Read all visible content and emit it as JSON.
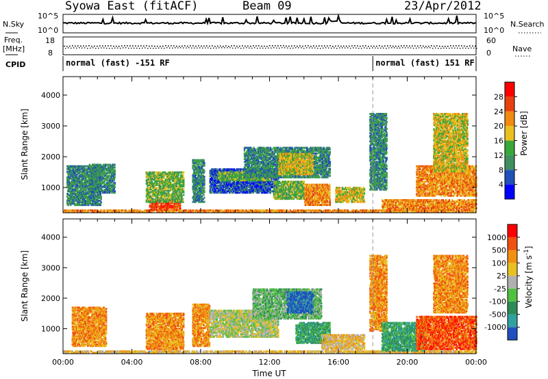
{
  "header": {
    "station": "Syowa East (fitACF)",
    "beam": "Beam 09",
    "date": "23/Apr/2012"
  },
  "noise_panel": {
    "left_label": "N.Sky",
    "right_label": "N.Search",
    "left_ticks": [
      "10^5",
      "10^0"
    ],
    "right_ticks": [
      "10^5",
      "10^0"
    ]
  },
  "freq_panel": {
    "left_label": "Freq.",
    "left_unit": "[MHz]",
    "right_label": "Nave",
    "left_ticks": [
      "18",
      "8"
    ],
    "right_ticks": [
      "60",
      "0"
    ]
  },
  "cpid_panel": {
    "label": "CPID",
    "modes": [
      {
        "name": "normal (fast) -151 RF",
        "start_hour": 0
      },
      {
        "name": "normal (fast) 151 RF",
        "start_hour": 18
      }
    ]
  },
  "chart_data": [
    {
      "type": "heatmap",
      "name": "power",
      "ylabel": "Slant Range [km]",
      "y_ticks": [
        "1000",
        "2000",
        "3000",
        "4000"
      ],
      "ylim": [
        180,
        4600
      ],
      "xlim": [
        0,
        24
      ],
      "colorbar": {
        "title": "Power [dB]",
        "labels": [
          "4",
          "8",
          "12",
          "16",
          "20",
          "24",
          "28"
        ],
        "colors": [
          "#0000ff",
          "#2050b8",
          "#3f8f5f",
          "#38a838",
          "#e8c020",
          "#f08a10",
          "#e84010",
          "#ff0000"
        ]
      },
      "echo_regions": [
        {
          "t0": 0.0,
          "t1": 24.0,
          "r0": 180,
          "r1": 260,
          "level": 5
        },
        {
          "t0": 0.2,
          "t1": 2.2,
          "r0": 400,
          "r1": 1700,
          "level": 2
        },
        {
          "t0": 1.5,
          "t1": 3.0,
          "r0": 800,
          "r1": 1750,
          "level": 2
        },
        {
          "t0": 5.0,
          "t1": 6.8,
          "r0": 250,
          "r1": 600,
          "level": 6
        },
        {
          "t0": 4.8,
          "t1": 7.0,
          "r0": 500,
          "r1": 1500,
          "level": 3
        },
        {
          "t0": 7.5,
          "t1": 8.2,
          "r0": 500,
          "r1": 1900,
          "level": 2
        },
        {
          "t0": 8.5,
          "t1": 12.5,
          "r0": 800,
          "r1": 1600,
          "level": 1
        },
        {
          "t0": 9.0,
          "t1": 12.0,
          "r0": 1200,
          "r1": 1500,
          "level": 3
        },
        {
          "t0": 10.5,
          "t1": 15.5,
          "r0": 1300,
          "r1": 2300,
          "level": 2
        },
        {
          "t0": 12.5,
          "t1": 14.5,
          "r0": 1400,
          "r1": 2100,
          "level": 4
        },
        {
          "t0": 12.2,
          "t1": 14.0,
          "r0": 600,
          "r1": 1200,
          "level": 3
        },
        {
          "t0": 14.0,
          "t1": 15.5,
          "r0": 400,
          "r1": 1100,
          "level": 5
        },
        {
          "t0": 15.8,
          "t1": 17.5,
          "r0": 500,
          "r1": 1000,
          "level": 4
        },
        {
          "t0": 17.8,
          "t1": 18.8,
          "r0": 900,
          "r1": 3400,
          "level": 2
        },
        {
          "t0": 18.5,
          "t1": 24.0,
          "r0": 250,
          "r1": 600,
          "level": 5
        },
        {
          "t0": 20.5,
          "t1": 24.0,
          "r0": 700,
          "r1": 1700,
          "level": 5
        },
        {
          "t0": 21.5,
          "t1": 23.5,
          "r0": 1500,
          "r1": 3400,
          "level": 4
        }
      ]
    },
    {
      "type": "heatmap",
      "name": "velocity",
      "ylabel": "Slant Range [km]",
      "y_ticks": [
        "1000",
        "2000",
        "3000",
        "4000"
      ],
      "ylim": [
        180,
        4600
      ],
      "xlim": [
        0,
        24
      ],
      "xlabel": "Time UT",
      "x_ticks": [
        "00:00",
        "04:00",
        "08:00",
        "12:00",
        "16:00",
        "20:00",
        "00:00"
      ],
      "colorbar": {
        "title": "Velocity [m s^-1]",
        "labels": [
          "1000",
          "500",
          "100",
          "25",
          "-25",
          "-100",
          "-500",
          "-1000"
        ],
        "colors": [
          "#2050c0",
          "#30a0a0",
          "#2e8b57",
          "#50c040",
          "#b0b0b0",
          "#e8c020",
          "#f09010",
          "#f05010",
          "#ff0000"
        ]
      },
      "echo_regions": [
        {
          "t0": 0.0,
          "t1": 24.0,
          "r0": 180,
          "r1": 260,
          "level": 5
        },
        {
          "t0": 0.5,
          "t1": 2.5,
          "r0": 400,
          "r1": 1700,
          "level": 6
        },
        {
          "t0": 4.8,
          "t1": 7.0,
          "r0": 300,
          "r1": 1500,
          "level": 6
        },
        {
          "t0": 7.5,
          "t1": 8.5,
          "r0": 400,
          "r1": 1800,
          "level": 6
        },
        {
          "t0": 8.5,
          "t1": 12.5,
          "r0": 700,
          "r1": 1600,
          "level": 4
        },
        {
          "t0": 9.5,
          "t1": 12.0,
          "r0": 1200,
          "r1": 1500,
          "level": 4
        },
        {
          "t0": 11.0,
          "t1": 15.0,
          "r0": 1300,
          "r1": 2300,
          "level": 3
        },
        {
          "t0": 13.0,
          "t1": 14.5,
          "r0": 1500,
          "r1": 2200,
          "level": 0
        },
        {
          "t0": 13.5,
          "t1": 15.5,
          "r0": 500,
          "r1": 1200,
          "level": 2
        },
        {
          "t0": 15.0,
          "t1": 17.5,
          "r0": 300,
          "r1": 800,
          "level": 5
        },
        {
          "t0": 17.8,
          "t1": 18.8,
          "r0": 900,
          "r1": 3400,
          "level": 6
        },
        {
          "t0": 18.5,
          "t1": 21.0,
          "r0": 250,
          "r1": 1200,
          "level": 2
        },
        {
          "t0": 20.5,
          "t1": 24.0,
          "r0": 300,
          "r1": 1400,
          "level": 7
        },
        {
          "t0": 21.5,
          "t1": 23.5,
          "r0": 1500,
          "r1": 3400,
          "level": 6
        }
      ]
    }
  ]
}
